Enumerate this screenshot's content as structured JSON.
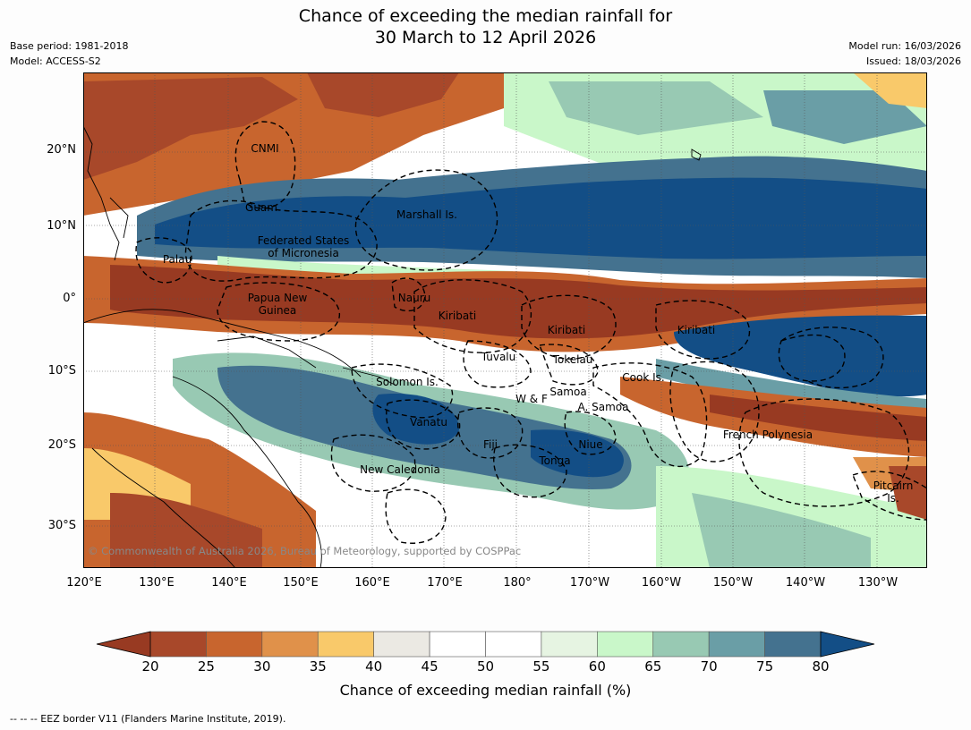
{
  "header": {
    "title_line1": "Chance of exceeding the median rainfall for",
    "title_line2": "30 March to 12 April 2026",
    "base_period": "Base period: 1981-2018",
    "model": "Model: ACCESS-S2",
    "model_run": "Model run: 16/03/2026",
    "issued": "Issued: 18/03/2026"
  },
  "axes": {
    "lat_labels": [
      "20°N",
      "10°N",
      "0°",
      "10°S",
      "20°S",
      "30°S"
    ],
    "lon_labels": [
      "120°E",
      "130°E",
      "140°E",
      "150°E",
      "160°E",
      "170°E",
      "180°",
      "170°W",
      "160°W",
      "150°W",
      "140°W",
      "130°W"
    ]
  },
  "regions": {
    "cnmi": "CNMI",
    "guam": "Guam",
    "marshall": "Marshall Is.",
    "fsm_1": "Federated States",
    "fsm_2": "of Micronesia",
    "palau": "Palau",
    "png_1": "Papua New",
    "png_2": "Guinea",
    "nauru": "Nauru",
    "kiribati_w": "Kiribati",
    "kiribati_c": "Kiribati",
    "kiribati_e": "Kiribati",
    "tuvalu": "Tuvalu",
    "tokelau": "Tokelau",
    "cook": "Cook Is.",
    "solomon": "Solomon Is.",
    "wf": "W & F",
    "samoa": "Samoa",
    "asamoa": "A. Samoa",
    "vanuatu": "Vanatu",
    "fiji": "Fiji",
    "niue": "Niue",
    "tonga": "Tonga",
    "newcal": "New Caledonia",
    "frpoly": "French Polynesia",
    "pitcairn_1": "Pitcairn",
    "pitcairn_2": "Is."
  },
  "copyright": "© Commonwealth of Australia 2026, Bureau of Meteorology, supported by COSPPac",
  "colorbar": {
    "ticks": [
      "20",
      "25",
      "30",
      "35",
      "40",
      "45",
      "50",
      "55",
      "60",
      "65",
      "70",
      "75",
      "80"
    ],
    "colors": [
      "#a8482a",
      "#c8652e",
      "#e0914a",
      "#f9c96a",
      "#ebe9e3",
      "#ffffff",
      "#ffffff",
      "#e6f4e2",
      "#c9f7c9",
      "#98c9b3",
      "#6a9ea6",
      "#44728f"
    ],
    "under_color": "#983a22",
    "over_color": "#134e86",
    "label": "Chance of exceeding median rainfall (%)"
  },
  "footnote": "--  --  -- EEZ border V11 (Flanders Marine Institute, 2019)."
}
